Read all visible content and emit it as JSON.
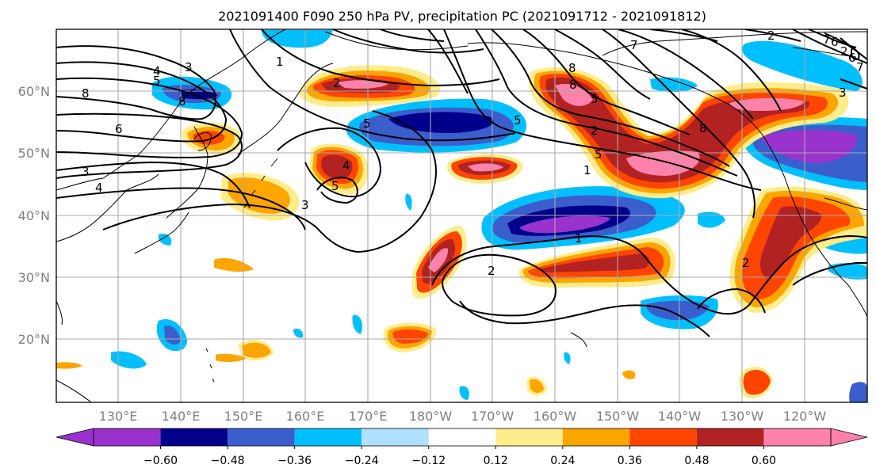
{
  "title": "2021091400 F090 250 hPa PV, precipitation PC (2021091712 - 2021091812)",
  "lat_labels": [
    "60°N",
    "50°N",
    "40°N",
    "30°N",
    "20°N"
  ],
  "lon_labels": [
    "130°E",
    "140°E",
    "150°E",
    "160°E",
    "170°E",
    "180°W",
    "170°W",
    "160°W",
    "150°W",
    "140°W",
    "130°W",
    "120°W"
  ],
  "colorbar": {
    "ticks": [
      "−0.60",
      "−0.48",
      "−0.36",
      "−0.24",
      "−0.12",
      "0.12",
      "0.24",
      "0.36",
      "0.48",
      "0.60"
    ],
    "colors": [
      "#9a32cd",
      "#00008b",
      "#3a5fcd",
      "#00bfff",
      "#b0e2ff",
      "#ffffff",
      "#ffec8b",
      "#ffa500",
      "#ff4500",
      "#b22222",
      "#ff82ab"
    ]
  },
  "contour_labels": [
    "8",
    "4",
    "3",
    "5",
    "8",
    "6",
    "1",
    "3",
    "4",
    "2",
    "5",
    "4",
    "5",
    "3",
    "1",
    "5",
    "8",
    "5",
    "7",
    "8",
    "6",
    "5",
    "2",
    "8",
    "2",
    "2",
    "1",
    "2",
    "2",
    "6",
    "3",
    "7",
    "7"
  ]
}
